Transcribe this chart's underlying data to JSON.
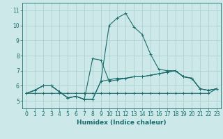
{
  "title": "",
  "xlabel": "Humidex (Indice chaleur)",
  "ylabel": "",
  "background_color": "#cde8e8",
  "grid_color": "#aacccc",
  "line_color": "#1a6b6b",
  "xlim": [
    -0.5,
    23.5
  ],
  "ylim": [
    4.5,
    11.5
  ],
  "xticks": [
    0,
    1,
    2,
    3,
    4,
    5,
    6,
    7,
    8,
    9,
    10,
    11,
    12,
    13,
    14,
    15,
    16,
    17,
    18,
    19,
    20,
    21,
    22,
    23
  ],
  "yticks": [
    5,
    6,
    7,
    8,
    9,
    10,
    11
  ],
  "series": [
    {
      "x": [
        0,
        1,
        2,
        3,
        4,
        5,
        6,
        7,
        8,
        9,
        10,
        11,
        12,
        13,
        14,
        15,
        16,
        17,
        18,
        19,
        20,
        21,
        22,
        23
      ],
      "y": [
        5.5,
        5.7,
        6.0,
        6.0,
        5.6,
        5.2,
        5.3,
        5.1,
        5.1,
        6.3,
        10.0,
        10.5,
        10.8,
        9.9,
        9.4,
        8.1,
        7.1,
        7.0,
        7.0,
        6.6,
        6.5,
        5.8,
        5.7,
        5.8
      ]
    },
    {
      "x": [
        0,
        1,
        2,
        3,
        4,
        5,
        6,
        7,
        8,
        9,
        10,
        11,
        12,
        13,
        14,
        15,
        16,
        17,
        18,
        19,
        20,
        21,
        22,
        23
      ],
      "y": [
        5.5,
        5.7,
        6.0,
        6.0,
        5.6,
        5.2,
        5.3,
        5.1,
        7.8,
        7.7,
        6.3,
        6.4,
        6.5,
        6.6,
        6.6,
        6.7,
        6.8,
        6.9,
        7.0,
        6.6,
        6.5,
        5.8,
        5.7,
        5.8
      ]
    },
    {
      "x": [
        0,
        1,
        2,
        3,
        4,
        5,
        6,
        7,
        8,
        9,
        10,
        11,
        12,
        13,
        14,
        15,
        16,
        17,
        18,
        19,
        20,
        21,
        22,
        23
      ],
      "y": [
        5.5,
        5.7,
        6.0,
        6.0,
        5.6,
        5.2,
        5.3,
        5.1,
        5.1,
        6.3,
        6.4,
        6.5,
        6.5,
        6.6,
        6.6,
        6.7,
        6.8,
        6.9,
        7.0,
        6.6,
        6.5,
        5.8,
        5.7,
        5.8
      ]
    },
    {
      "x": [
        0,
        1,
        2,
        3,
        4,
        5,
        6,
        7,
        8,
        9,
        10,
        11,
        12,
        13,
        14,
        15,
        16,
        17,
        18,
        19,
        20,
        21,
        22,
        23
      ],
      "y": [
        5.5,
        5.5,
        5.5,
        5.5,
        5.5,
        5.5,
        5.5,
        5.5,
        5.5,
        5.5,
        5.5,
        5.5,
        5.5,
        5.5,
        5.5,
        5.5,
        5.5,
        5.5,
        5.5,
        5.5,
        5.5,
        5.5,
        5.5,
        5.8
      ]
    }
  ],
  "marker": "+",
  "markersize": 3,
  "linewidth": 0.8,
  "tick_fontsize": 5.5,
  "xlabel_fontsize": 6.5
}
